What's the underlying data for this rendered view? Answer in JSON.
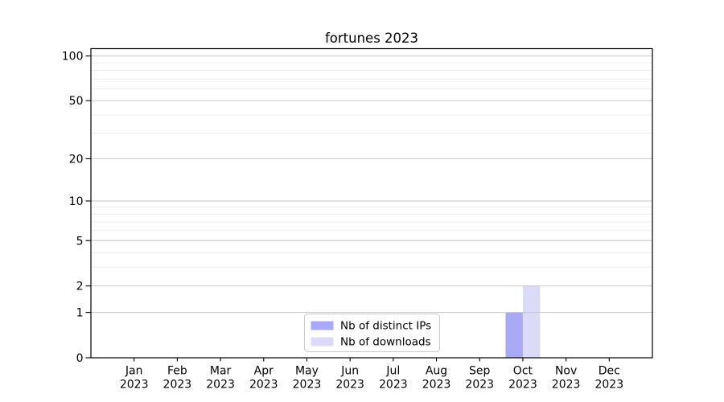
{
  "chart_data": {
    "type": "bar",
    "title": "fortunes 2023",
    "categories": [
      "Jan 2023",
      "Feb 2023",
      "Mar 2023",
      "Apr 2023",
      "May 2023",
      "Jun 2023",
      "Jul 2023",
      "Aug 2023",
      "Sep 2023",
      "Oct 2023",
      "Nov 2023",
      "Dec 2023"
    ],
    "series": [
      {
        "name": "Nb of distinct IPs",
        "color": "#a9a9f5",
        "values": [
          0,
          0,
          0,
          0,
          0,
          0,
          0,
          0,
          0,
          1,
          0,
          0
        ]
      },
      {
        "name": "Nb of downloads",
        "color": "#dbdbf7",
        "values": [
          0,
          0,
          0,
          0,
          0,
          0,
          0,
          0,
          0,
          2,
          0,
          0
        ]
      }
    ],
    "y_scale": "log1p",
    "y_ticks": [
      0,
      1,
      2,
      5,
      10,
      20,
      50,
      100
    ],
    "y_minor_gridlines": [
      3,
      4,
      6,
      7,
      8,
      9,
      30,
      40,
      60,
      70,
      80,
      90
    ],
    "ylim": [
      0,
      112
    ],
    "grid": true,
    "legend_position": "lower center",
    "colors": {
      "axis": "#000000",
      "grid_major": "#c6c6c6",
      "grid_minor": "#ececec",
      "legend_border": "#cccccc",
      "legend_bg": "#ffffff"
    }
  }
}
